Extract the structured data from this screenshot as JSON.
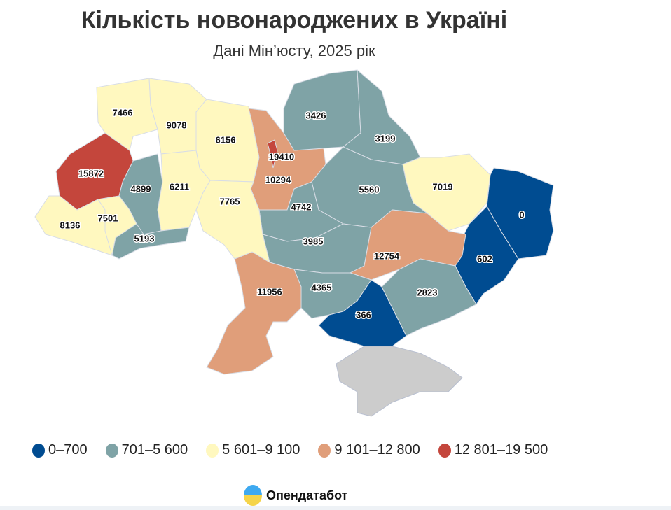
{
  "header": {
    "title": "Кількість новонароджених в Україні",
    "subtitle": "Дані Мін’юсту, 2025 рік"
  },
  "chart_data": {
    "type": "choropleth",
    "bins": [
      {
        "label": "0–700",
        "color": "#004c91"
      },
      {
        "label": "701–5 600",
        "color": "#7fa3a6"
      },
      {
        "label": "5 601–9 100",
        "color": "#fff8bf"
      },
      {
        "label": "9 101–12 800",
        "color": "#e09e7a"
      },
      {
        "label": "12 801–19 500",
        "color": "#c4463c"
      }
    ],
    "no_data_color": "#cccccc",
    "regions": [
      {
        "value": "7466",
        "bin": 2
      },
      {
        "value": "9078",
        "bin": 2
      },
      {
        "value": "6156",
        "bin": 2
      },
      {
        "value": "10294",
        "bin": 3
      },
      {
        "value": "3426",
        "bin": 1
      },
      {
        "value": "3199",
        "bin": 1
      },
      {
        "value": "7019",
        "bin": 2
      },
      {
        "value": "0",
        "bin": 0
      },
      {
        "value": "602",
        "bin": 0
      },
      {
        "value": "5560",
        "bin": 1
      },
      {
        "value": "4742",
        "bin": 1
      },
      {
        "value": "3985",
        "bin": 1
      },
      {
        "value": "12754",
        "bin": 3
      },
      {
        "value": "2823",
        "bin": 1
      },
      {
        "value": "4365",
        "bin": 1
      },
      {
        "value": "366",
        "bin": 0
      },
      {
        "value": "11956",
        "bin": 3
      },
      {
        "value": "7765",
        "bin": 2
      },
      {
        "value": "6211",
        "bin": 2
      },
      {
        "value": "4899",
        "bin": 1
      },
      {
        "value": "15872",
        "bin": 4
      },
      {
        "value": "8136",
        "bin": 2
      },
      {
        "value": "7501",
        "bin": 2
      },
      {
        "value": "5193",
        "bin": 1
      },
      {
        "value": "19410",
        "bin": 4
      },
      {
        "value": null,
        "bin": null
      }
    ]
  },
  "footer": {
    "brand": "Опендатабот"
  }
}
